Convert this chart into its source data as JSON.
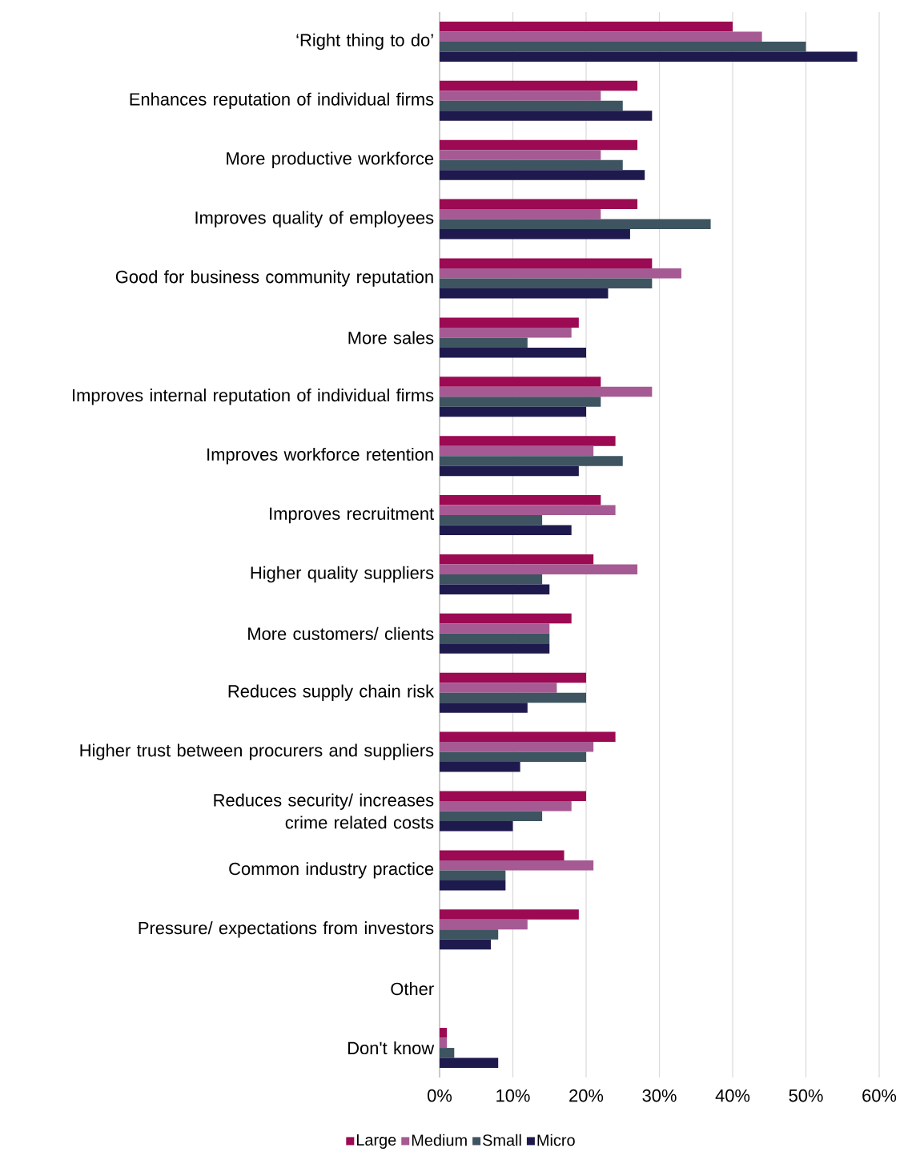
{
  "chart_data": {
    "type": "bar",
    "orientation": "horizontal",
    "categories": [
      "‘Right thing to do’",
      "Enhances reputation of individual firms",
      "More productive workforce",
      "Improves quality of employees",
      "Good for business community reputation",
      "More sales",
      "Improves internal reputation of individual firms",
      "Improves workforce retention",
      "Improves recruitment",
      "Higher quality suppliers",
      "More customers/ clients",
      "Reduces supply chain risk",
      "Higher trust between procurers and suppliers",
      "Reduces security/ increases crime related costs",
      "Common industry practice",
      "Pressure/ expectations from investors",
      "Other",
      "Don't know"
    ],
    "series": [
      {
        "name": "Large",
        "color": "#9b0a52",
        "values": [
          40,
          27,
          27,
          27,
          29,
          19,
          22,
          24,
          22,
          21,
          18,
          20,
          24,
          20,
          17,
          19,
          null,
          1
        ]
      },
      {
        "name": "Medium",
        "color": "#a65a93",
        "values": [
          44,
          22,
          22,
          22,
          33,
          18,
          29,
          21,
          24,
          27,
          15,
          16,
          21,
          18,
          21,
          12,
          null,
          1
        ]
      },
      {
        "name": "Small",
        "color": "#3e5461",
        "values": [
          50,
          25,
          25,
          37,
          29,
          12,
          22,
          25,
          14,
          14,
          15,
          20,
          20,
          14,
          9,
          8,
          null,
          2
        ]
      },
      {
        "name": "Micro",
        "color": "#1f1a4e",
        "values": [
          57,
          29,
          28,
          26,
          23,
          20,
          20,
          19,
          18,
          15,
          15,
          12,
          11,
          10,
          9,
          7,
          null,
          8
        ]
      }
    ],
    "xlim": [
      0,
      60
    ],
    "xticks": [
      {
        "value": 0,
        "label": "0%"
      },
      {
        "value": 10,
        "label": "10%"
      },
      {
        "value": 20,
        "label": "20%"
      },
      {
        "value": 30,
        "label": "30%"
      },
      {
        "value": 40,
        "label": "40%"
      },
      {
        "value": 50,
        "label": "50%"
      },
      {
        "value": 60,
        "label": "60%"
      }
    ],
    "grid": "x",
    "legend": "bottom"
  }
}
